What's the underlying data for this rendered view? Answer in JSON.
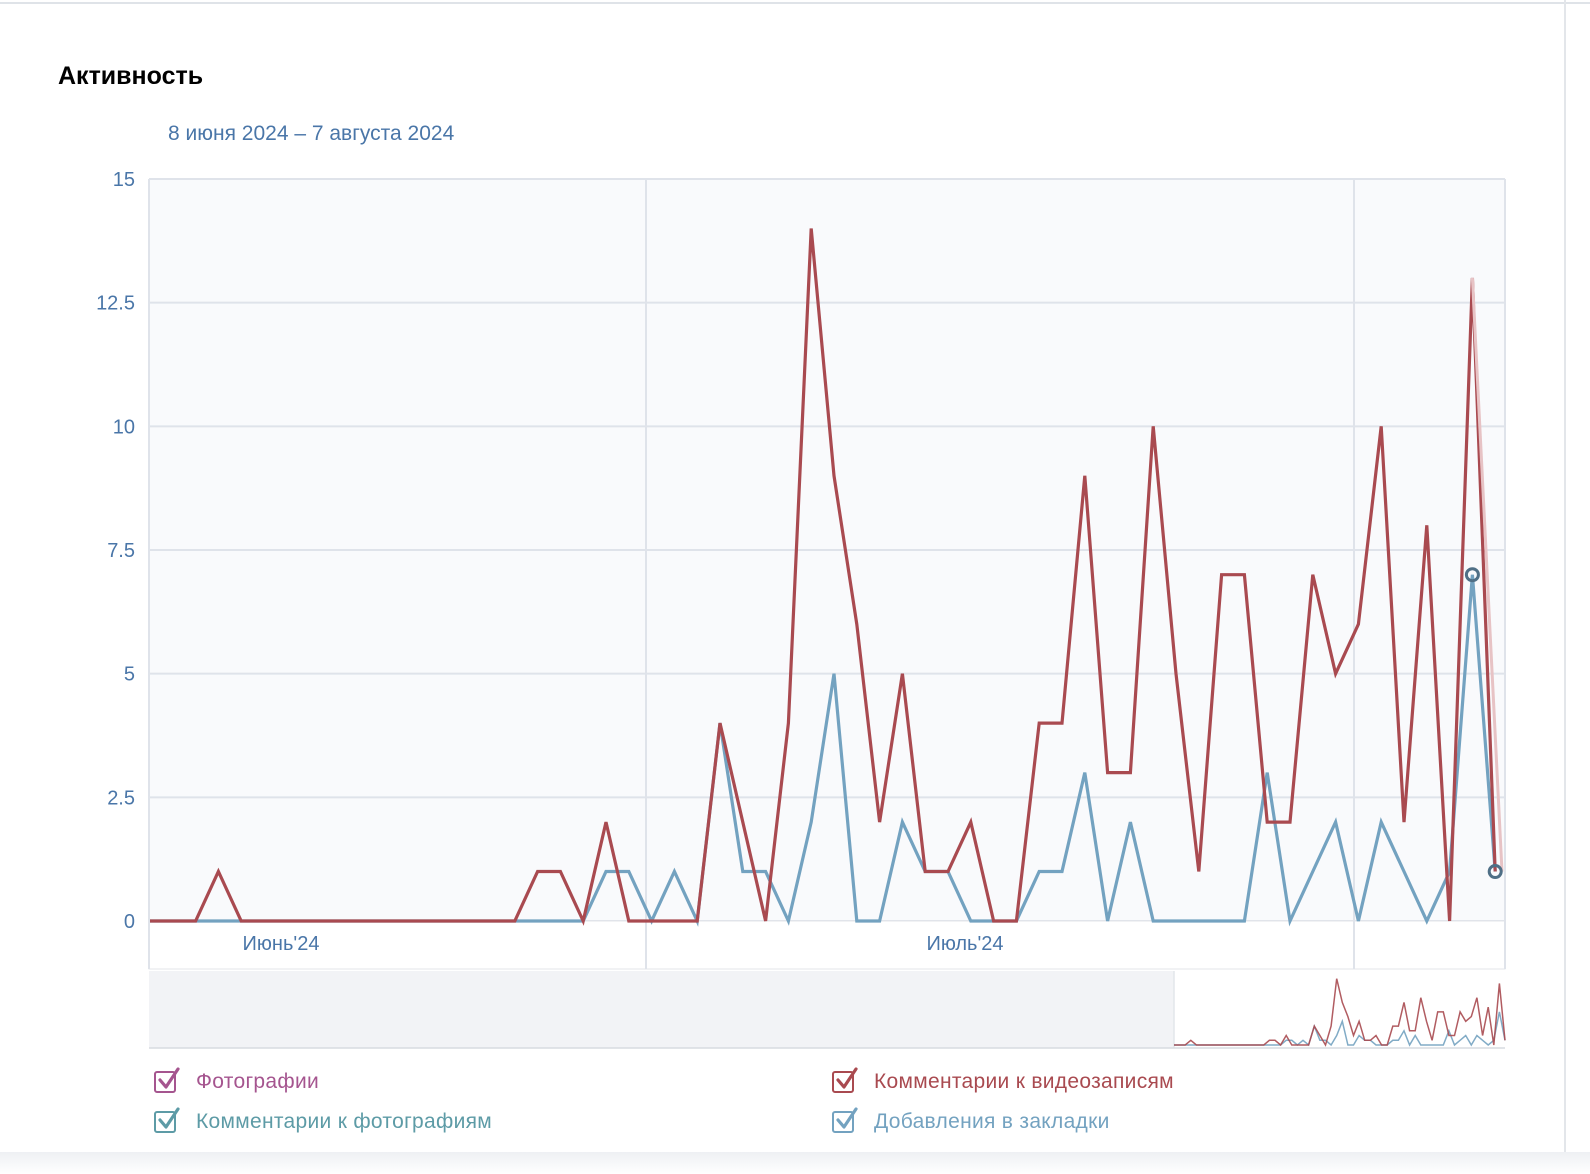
{
  "widget": {
    "title": "Активность",
    "date_range": "8 июня 2024 – 7 августа 2024"
  },
  "colors": {
    "photos": "#a5558f",
    "photo_comments": "#5d9ba6",
    "video_comments": "#a94a50",
    "bookmarks": "#73a2c0",
    "axis_text": "#4a76a8",
    "grid": "#dfe3ea",
    "plot_bg": "#f9fafc"
  },
  "legend": [
    {
      "label": "Фотографии",
      "checked": true,
      "color": "#a5558f"
    },
    {
      "label": "Комментарии к видеозаписям",
      "checked": true,
      "color": "#a94a50"
    },
    {
      "label": "Комментарии к фотографиям",
      "checked": true,
      "color": "#5d9ba6"
    },
    {
      "label": "Добавления в закладки",
      "checked": true,
      "color": "#73a2c0"
    }
  ],
  "chart_data": {
    "type": "line",
    "ylim": [
      0,
      15
    ],
    "y_ticks": [
      "0",
      "2.5",
      "5",
      "7.5",
      "10",
      "12.5",
      "15"
    ],
    "x_tick_labels": [
      "Июнь'24",
      "Июль'24"
    ],
    "grid": true,
    "legend_position": "bottom",
    "navigator": true,
    "series": [
      {
        "name": "Комментарии к видеозаписям",
        "color": "#a94a50",
        "values": [
          0,
          0,
          0,
          1,
          0,
          0,
          0,
          0,
          0,
          0,
          0,
          0,
          0,
          0,
          0,
          0,
          0,
          1,
          1,
          0,
          2,
          0,
          0,
          0,
          0,
          4,
          2,
          0,
          4,
          14,
          9,
          6,
          2,
          5,
          1,
          1,
          2,
          0,
          0,
          4,
          4,
          9,
          3,
          3,
          10,
          5,
          1,
          7,
          7,
          2,
          2,
          7,
          5,
          6,
          10,
          2,
          8,
          0,
          13,
          1
        ]
      },
      {
        "name": "Добавления в закладки",
        "color": "#73a2c0",
        "values": [
          0,
          0,
          0,
          0,
          0,
          0,
          0,
          0,
          0,
          0,
          0,
          0,
          0,
          0,
          0,
          0,
          0,
          0,
          0,
          0,
          1,
          1,
          0,
          1,
          0,
          4,
          1,
          1,
          0,
          2,
          5,
          0,
          0,
          2,
          1,
          1,
          0,
          0,
          0,
          1,
          1,
          3,
          0,
          2,
          0,
          0,
          0,
          0,
          0,
          3,
          0,
          1,
          2,
          0,
          2,
          1,
          0,
          1,
          7,
          1
        ]
      }
    ]
  }
}
